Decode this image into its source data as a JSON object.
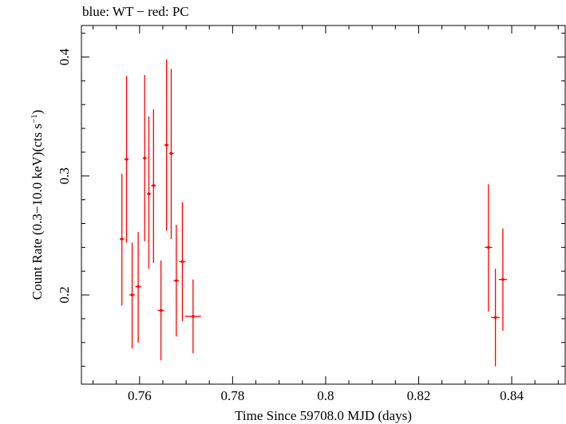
{
  "chart_data": {
    "type": "scatter",
    "title": "blue: WT − red: PC",
    "xlabel": "Time Since 59708.0 MJD (days)",
    "ylabel_main": "Count Rate (0.3−10.0 keV)(cts s",
    "ylabel_sup": "−1",
    "ylabel_end": ")",
    "xlim": [
      0.7475,
      0.8515
    ],
    "ylim": [
      0.125,
      0.4265
    ],
    "xticks": [
      0.76,
      0.78,
      0.8,
      0.82,
      0.84
    ],
    "xtick_labels": [
      "0.76",
      "0.78",
      "0.8",
      "0.82",
      "0.84"
    ],
    "yticks": [
      0.2,
      0.3,
      0.4
    ],
    "ytick_labels": [
      "0.2",
      "0.3",
      "0.4"
    ],
    "grid": false,
    "series": [
      {
        "color": "#ff0000",
        "points": [
          {
            "x": 0.7562,
            "y": 0.247,
            "xerr": 0.0005,
            "ylo": 0.191,
            "yhi": 0.302
          },
          {
            "x": 0.7572,
            "y": 0.314,
            "xerr": 0.0005,
            "ylo": 0.244,
            "yhi": 0.384
          },
          {
            "x": 0.7584,
            "y": 0.2,
            "xerr": 0.0006,
            "ylo": 0.155,
            "yhi": 0.244
          },
          {
            "x": 0.7597,
            "y": 0.207,
            "xerr": 0.0006,
            "ylo": 0.16,
            "yhi": 0.253
          },
          {
            "x": 0.7611,
            "y": 0.315,
            "xerr": 0.0004,
            "ylo": 0.245,
            "yhi": 0.385
          },
          {
            "x": 0.762,
            "y": 0.285,
            "xerr": 0.0004,
            "ylo": 0.222,
            "yhi": 0.35
          },
          {
            "x": 0.763,
            "y": 0.292,
            "xerr": 0.0005,
            "ylo": 0.227,
            "yhi": 0.356
          },
          {
            "x": 0.7646,
            "y": 0.187,
            "xerr": 0.0007,
            "ylo": 0.145,
            "yhi": 0.229
          },
          {
            "x": 0.7658,
            "y": 0.326,
            "xerr": 0.0005,
            "ylo": 0.254,
            "yhi": 0.398
          },
          {
            "x": 0.7668,
            "y": 0.319,
            "xerr": 0.0005,
            "ylo": 0.247,
            "yhi": 0.39
          },
          {
            "x": 0.7679,
            "y": 0.212,
            "xerr": 0.0006,
            "ylo": 0.165,
            "yhi": 0.259
          },
          {
            "x": 0.7692,
            "y": 0.228,
            "xerr": 0.0007,
            "ylo": 0.178,
            "yhi": 0.278
          },
          {
            "x": 0.7715,
            "y": 0.182,
            "xerr": 0.0017,
            "ylo": 0.151,
            "yhi": 0.213
          },
          {
            "x": 0.835,
            "y": 0.24,
            "xerr": 0.0008,
            "ylo": 0.186,
            "yhi": 0.293
          },
          {
            "x": 0.8365,
            "y": 0.181,
            "xerr": 0.0009,
            "ylo": 0.14,
            "yhi": 0.222
          },
          {
            "x": 0.8381,
            "y": 0.213,
            "xerr": 0.0009,
            "ylo": 0.17,
            "yhi": 0.256
          }
        ]
      }
    ]
  }
}
